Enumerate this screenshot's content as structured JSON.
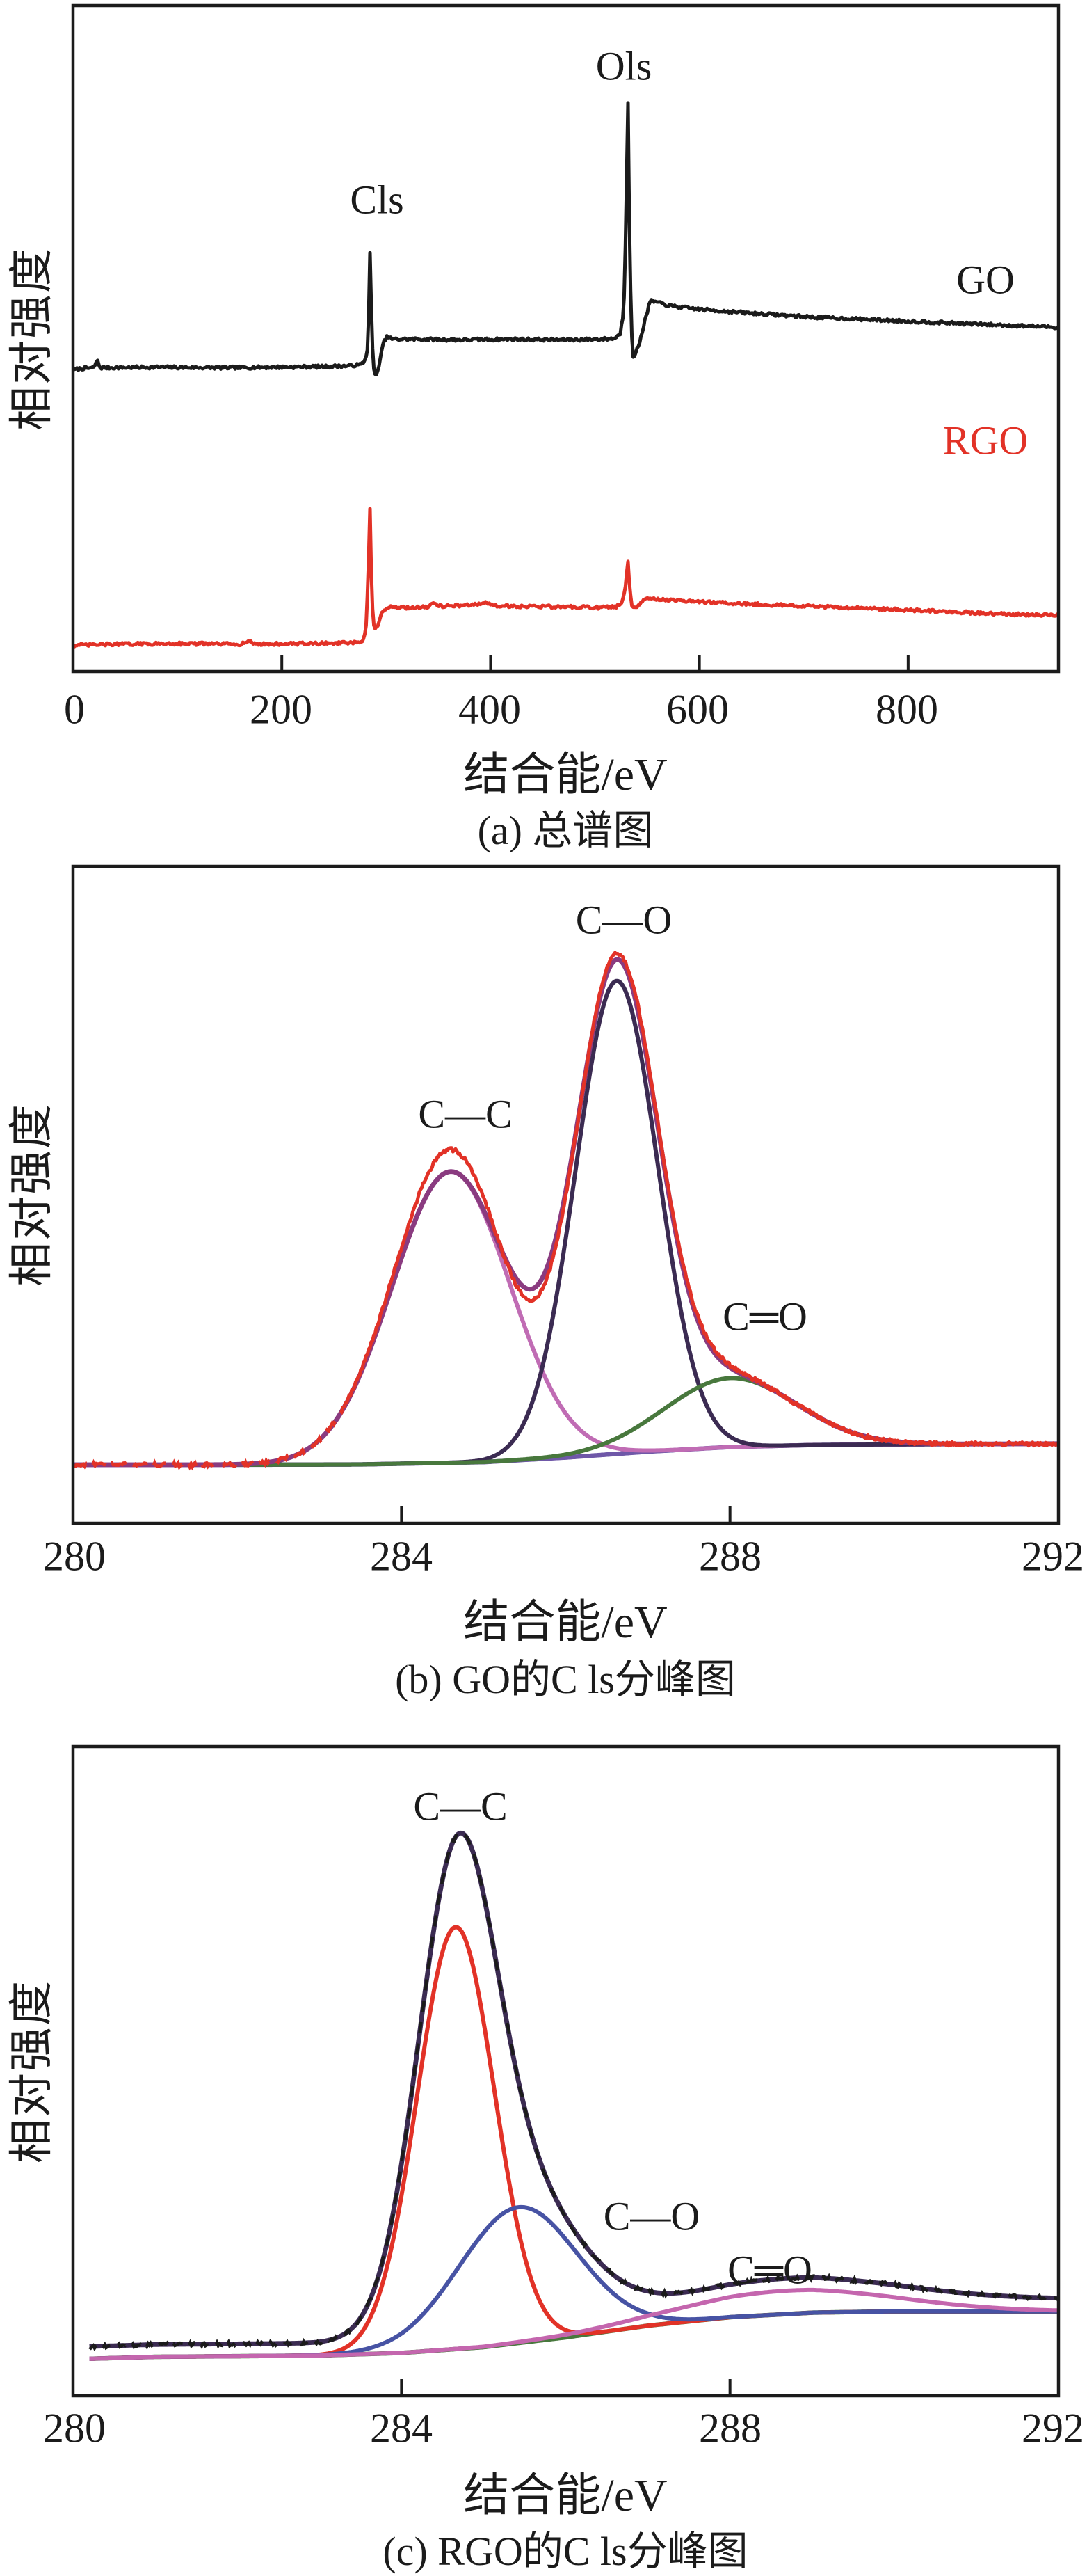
{
  "figure": {
    "background": "#ffffff",
    "text_color": "#1b1b1b"
  },
  "colors": {
    "black": "#1b1b1b",
    "red": "#e23227",
    "purple_envelope": "#8a3b80",
    "orchid": "#c06cb4",
    "navy": "#3b2b52",
    "green": "#48783d",
    "violet_baseline": "#6f58a8",
    "blue": "#4753a4",
    "pink": "#c466ae"
  },
  "chart_data": [
    {
      "id": "a",
      "type": "line",
      "title": "(a) 总谱图",
      "xlabel": "结合能/eV",
      "ylabel": "相对强度",
      "x_min": 0,
      "x_max": 944,
      "x_ticks": [
        0,
        200,
        400,
        600,
        800
      ],
      "grid": false,
      "legend_position": "inline-labels",
      "annotations": [
        {
          "text": "Cls",
          "x_ev": 285,
          "color": "black"
        },
        {
          "text": "Ols",
          "x_ev": 532,
          "color": "black"
        }
      ],
      "series": [
        {
          "name": "GO",
          "color": "black",
          "noise": 0.22,
          "points": [
            [
              0,
              45.3
            ],
            [
              8,
              45.5
            ],
            [
              20,
              45.6
            ],
            [
              23,
              46.8
            ],
            [
              26,
              45.6
            ],
            [
              80,
              45.7
            ],
            [
              140,
              45.6
            ],
            [
              200,
              45.7
            ],
            [
              245,
              45.8
            ],
            [
              265,
              45.9
            ],
            [
              276,
              46.1
            ],
            [
              280,
              46.8
            ],
            [
              282,
              48.5
            ],
            [
              283.6,
              55.0
            ],
            [
              284.7,
              65.3
            ],
            [
              285.8,
              54.0
            ],
            [
              287,
              48.0
            ],
            [
              288.5,
              44.5
            ],
            [
              290.5,
              44.8
            ],
            [
              293,
              45.6
            ],
            [
              297,
              49.3
            ],
            [
              301,
              50.3
            ],
            [
              306,
              49.9
            ],
            [
              330,
              49.9
            ],
            [
              370,
              49.8
            ],
            [
              420,
              49.9
            ],
            [
              470,
              49.8
            ],
            [
              505,
              49.9
            ],
            [
              518,
              50.0
            ],
            [
              524,
              50.6
            ],
            [
              527.5,
              54.0
            ],
            [
              529.8,
              68.0
            ],
            [
              531.5,
              87.3
            ],
            [
              533,
              66.0
            ],
            [
              534.8,
              52.0
            ],
            [
              536.2,
              47.0
            ],
            [
              539,
              47.8
            ],
            [
              543,
              49.6
            ],
            [
              548,
              52.8
            ],
            [
              553,
              55.7
            ],
            [
              558,
              55.5
            ],
            [
              572,
              54.9
            ],
            [
              600,
              54.4
            ],
            [
              650,
              53.8
            ],
            [
              710,
              53.2
            ],
            [
              770,
              52.8
            ],
            [
              830,
              52.4
            ],
            [
              890,
              52.0
            ],
            [
              944,
              51.7
            ]
          ]
        },
        {
          "name": "RGO",
          "color": "red",
          "noise": 0.22,
          "points": [
            [
              0,
              3.9
            ],
            [
              40,
              4.1
            ],
            [
              100,
              4.2
            ],
            [
              160,
              4.1
            ],
            [
              168,
              4.5
            ],
            [
              176,
              4.1
            ],
            [
              230,
              4.2
            ],
            [
              272,
              4.3
            ],
            [
              278,
              4.6
            ],
            [
              280.5,
              6.0
            ],
            [
              282.5,
              13.0
            ],
            [
              284.5,
              24.6
            ],
            [
              286,
              13.0
            ],
            [
              287.5,
              7.5
            ],
            [
              289,
              6.3
            ],
            [
              292,
              6.8
            ],
            [
              296,
              8.8
            ],
            [
              301,
              9.7
            ],
            [
              320,
              9.6
            ],
            [
              341,
              9.7
            ],
            [
              345,
              10.5
            ],
            [
              350,
              9.8
            ],
            [
              372,
              9.9
            ],
            [
              396,
              10.3
            ],
            [
              401,
              9.9
            ],
            [
              430,
              9.8
            ],
            [
              470,
              9.7
            ],
            [
              505,
              9.6
            ],
            [
              520,
              9.7
            ],
            [
              526,
              10.2
            ],
            [
              529.5,
              13.0
            ],
            [
              531.5,
              16.6
            ],
            [
              533.2,
              12.5
            ],
            [
              535.5,
              9.6
            ],
            [
              539,
              9.6
            ],
            [
              544,
              10.3
            ],
            [
              550,
              11.0
            ],
            [
              557,
              10.9
            ],
            [
              580,
              10.6
            ],
            [
              640,
              10.2
            ],
            [
              700,
              9.8
            ],
            [
              760,
              9.5
            ],
            [
              820,
              9.1
            ],
            [
              880,
              8.7
            ],
            [
              944,
              8.4
            ]
          ]
        }
      ]
    },
    {
      "id": "b",
      "type": "line",
      "title": "(b) GO的C ls分峰图",
      "xlabel": "结合能/eV",
      "ylabel": "相对强度",
      "x_min": 280,
      "x_max": 292,
      "x_ticks": [
        280,
        284,
        288,
        292
      ],
      "inner_ticks": [
        284,
        288
      ],
      "grid": false,
      "baseline": {
        "color": "violet_baseline",
        "points": [
          [
            280,
            8.9
          ],
          [
            282,
            8.9
          ],
          [
            283.5,
            8.95
          ],
          [
            285,
            9.3
          ],
          [
            286,
            10.0
          ],
          [
            287,
            10.9
          ],
          [
            288,
            11.6
          ],
          [
            289,
            11.9
          ],
          [
            290,
            12.0
          ],
          [
            292,
            12.1
          ]
        ]
      },
      "components": [
        {
          "label": "C—C",
          "bond": "C-C",
          "color": "orchid",
          "center_ev": 284.6,
          "sigma_ev": 0.72,
          "amplitude": 44.3
        },
        {
          "label": "C—O",
          "bond": "C-O",
          "color": "navy",
          "center_ev": 286.62,
          "sigma_ev": 0.5,
          "amplitude": 72.0
        },
        {
          "label": "C═O",
          "bond": "C=O",
          "color": "green",
          "center_ev": 288.0,
          "sigma_ev": 0.8,
          "amplitude": 10.5
        }
      ],
      "envelope": {
        "color": "purple_envelope",
        "offset": 0.0
      },
      "raw": {
        "color": "red",
        "noise": 0.3,
        "dashed_until_ev": 283.3,
        "extra_bumps": [
          {
            "center_ev": 284.6,
            "sigma_ev": 0.5,
            "amplitude": 3.4
          },
          {
            "center_ev": 285.55,
            "sigma_ev": 0.35,
            "amplitude": -2.2
          },
          {
            "center_ev": 286.62,
            "sigma_ev": 0.35,
            "amplitude": 0.9
          },
          {
            "center_ev": 287.6,
            "sigma_ev": 0.4,
            "amplitude": 0.6
          }
        ]
      }
    },
    {
      "id": "c",
      "type": "line",
      "title": "(c) RGO的C ls分峰图",
      "xlabel": "结合能/eV",
      "ylabel": "相对强度",
      "x_min": 280,
      "x_max": 292,
      "x_ticks": [
        280,
        284,
        288,
        292
      ],
      "inner_ticks": [
        284,
        288
      ],
      "grid": false,
      "data_start_ev": 280.2,
      "baseline": {
        "color": "green",
        "points": [
          [
            280.2,
            5.7
          ],
          [
            281,
            6.0
          ],
          [
            282,
            6.1
          ],
          [
            283,
            6.2
          ],
          [
            284,
            6.6
          ],
          [
            285,
            7.5
          ],
          [
            286,
            9.0
          ],
          [
            287,
            10.8
          ],
          [
            288,
            12.1
          ],
          [
            289,
            12.8
          ],
          [
            290,
            13.0
          ],
          [
            292,
            13.0
          ]
        ]
      },
      "components": [
        {
          "label": "C—C",
          "bond": "C-C",
          "color": "red",
          "center_ev": 284.66,
          "sigma_ev": 0.47,
          "amplitude": 65.0
        },
        {
          "label": "C—O",
          "bond": "C-O",
          "color": "blue",
          "center_ev": 285.42,
          "sigma_ev": 0.72,
          "amplitude": 20.9
        },
        {
          "label": "C═O",
          "bond": "C=O",
          "color": "pink",
          "center_ev": 288.7,
          "sigma_ev": 1.3,
          "amplitude": 3.6
        }
      ],
      "envelope": {
        "color": "navy",
        "offset": 1.9
      },
      "raw": {
        "color": "black",
        "noise": 0.3,
        "dashed": true,
        "extra_bumps": []
      }
    }
  ],
  "labels": {
    "a": {
      "ylabel": "相对强度",
      "xlabel": "结合能/eV",
      "caption": "(a) 总谱图",
      "peak1": "Cls",
      "peak2": "Ols",
      "series1": "GO",
      "series2": "RGO",
      "t0": "0",
      "t1": "200",
      "t2": "400",
      "t3": "600",
      "t4": "800"
    },
    "b": {
      "ylabel": "相对强度",
      "xlabel": "结合能/eV",
      "caption": "(b) GO的C ls分峰图",
      "cc": "C—C",
      "co": "C—O",
      "oo": "C═O",
      "t0": "280",
      "t1": "284",
      "t2": "288",
      "t3": "292"
    },
    "c": {
      "ylabel": "相对强度",
      "xlabel": "结合能/eV",
      "caption": "(c) RGO的C ls分峰图",
      "cc": "C—C",
      "co": "C—O",
      "oo": "C═O",
      "t0": "280",
      "t1": "284",
      "t2": "288",
      "t3": "292"
    }
  }
}
